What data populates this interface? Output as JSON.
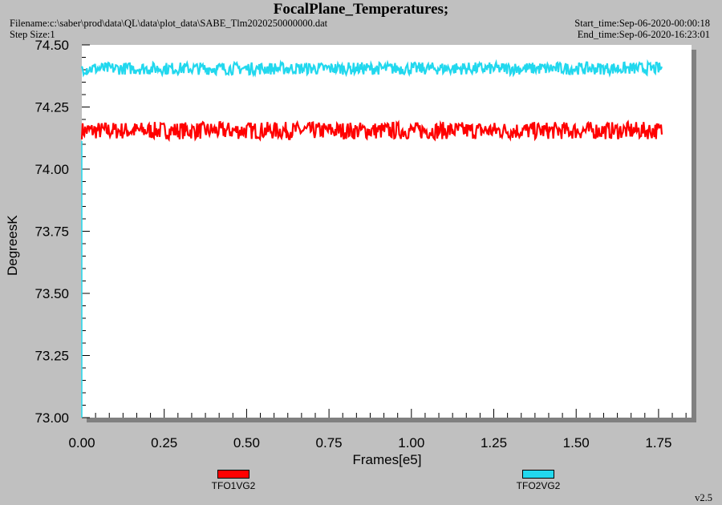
{
  "header": {
    "title": "FocalPlane_Temperatures;",
    "filename": "Filename:c:\\saber\\prod\\data\\QL\\data\\plot_data\\SABE_Tlm2020250000000.dat",
    "step_size": "Step Size:1",
    "start_time": "Start_time:Sep-06-2020-00:00:18",
    "end_time": "End_time:Sep-06-2020-16:23:01"
  },
  "version": "v2.5",
  "colors": {
    "background": "#c0c0c0",
    "plot_area": "#ffffff",
    "shadow": "#808080",
    "tfo1": "#ff0000",
    "tfo2": "#22d8ee",
    "axis": "#000000"
  },
  "chart_data": {
    "type": "line",
    "title": "FocalPlane_Temperatures;",
    "xlabel": "Frames[e5]",
    "ylabel": "DegreesK",
    "xlim": [
      0,
      1.85
    ],
    "ylim": [
      73.0,
      74.5
    ],
    "xticks": [
      "0.00",
      "0.25",
      "0.50",
      "0.75",
      "1.00",
      "1.25",
      "1.50",
      "1.75"
    ],
    "yticks": [
      "73.00",
      "73.25",
      "73.50",
      "73.75",
      "74.00",
      "74.25",
      "74.50"
    ],
    "grid": false,
    "legend_position": "bottom",
    "series": [
      {
        "name": "TFO1VG2",
        "x_range": [
          0.0,
          1.76
        ],
        "mean": 74.155,
        "spread": 0.035
      },
      {
        "name": "TFO2VG2",
        "x_range": [
          0.0,
          1.76
        ],
        "mean": 74.405,
        "spread": 0.025
      }
    ]
  }
}
